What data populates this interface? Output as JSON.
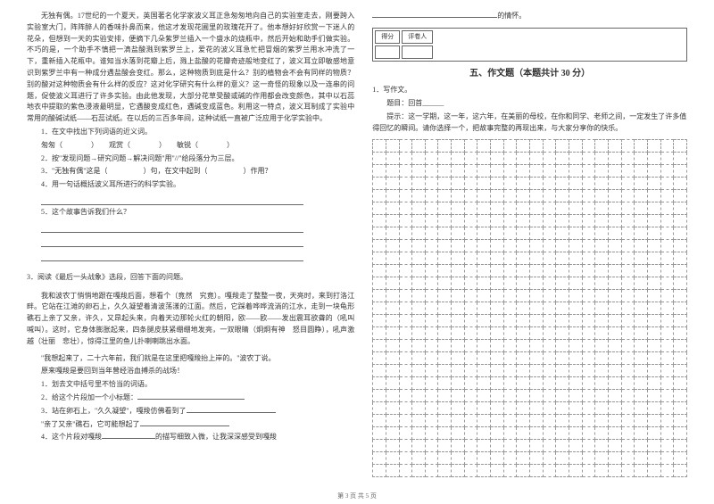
{
  "leftCol": {
    "passage1": {
      "p1": "无独有偶。17世纪的一个夏天，英国著名化学家波义耳正急匆匆地向自己的实验室走去，刚要跨入实验室大门，阵阵醉人的香味扑鼻而来，他这才发现花圃里的玫瑰花开了。他本想好好欣赏一下迷人的花朵，但想到一天的实验安排，便摘下几朵紫罗兰插入一个盛水的烧瓶中，然后开始和助手们做实验。不巧的是，一个助手不慎把一滴盐酸溅到紫罗兰上，爱花的波义耳急忙把冒烟的紫罗兰用水冲洗了一下，重新插入花瓶中。谁知当水落到花瓣上后，溅上盐酸的花瓣奇迹般地变红了，波义耳立即敏感地意识到紫罗兰中有一种成分遇盐酸会变红。那么，这种物质到底是什么？别的植物会不会有同样的物质？别的酸对这种物质会有什么样的反应？这对化学研究有什么样的意义？这一奇怪的现象以及一连串的问题，促使波义耳进行了许多实验。由此他发现，大部分花草受酸或碱的作用都会改变颜色，其中以石蕊地衣中提取的紫色浸液最明显，它遇酸变成红色，遇碱变成蓝色。利用这一特点，波义耳制成了实验中常用的酸碱试纸——石蕊试纸。在以后的三百多年间，这种试纸一直被广泛应用于化学实验中。",
      "q1_label": "1．在文中找出下列词语的近义词。",
      "q1_items": "匆匆（　　　　）　　观赏（　　　　）　　敏锐（　　　　）",
      "q2": "2．按\"发现问题→研究问题→解决问题\"用\"//\"给段落分为三层。",
      "q3_a": "3．\"无独有偶\"这是（　　　　　）句，在文中起到（　　　　　）作用？",
      "q4": "4．用一句话概括波义耳所进行的科学实验。",
      "q5": "5．这个故事告诉我们什么？"
    },
    "passage2": {
      "title": "3．阅读《最后一头战象》选段，回答下面的问题。",
      "p1": "我和波农丁悄悄地跟在嘎羧后面，想看个（竟然　究竟）。嘎羧走了整整一夜，天亮时，来到打洛江畔。它站在江滩的卵石上，久久凝望着清波荡漾的江面。然后，它踩着哗哗流淌的江水，走到一块龟形礁石上亲了又亲，许久，又昂起头来，向着天边那轮火红的朝阳，欧——欧——发出震耳欲聋的（吼叫　喊叫）。这时，它身体膨胀起来，四条腿皮肤紧绷绷地发亮，一双眼睛（炯炯有神　怒目圆睁），吼声激越（壮丽　悲壮），惊得江里的鱼儿扑喇喇跳出水面。",
      "p2": "\"我想起来了，二十六年前，我们就是在这里把嘎羧抬上岸的。\"波农丁说。",
      "p3": "原来嘎羧是要回到当年曾经浴血搏杀的战场！",
      "q1": "1．划去文中括号里不恰当的词语。",
      "q2": "2．给这个片段加一个小标题：",
      "q3_a": "3．站在卵石上，\"久久凝望\"，嘎羧仿佛看到了",
      "q3_b": "\"亲了又亲\"礁石，它可能想起了",
      "q4_a": "4．这个片段对嘎羧",
      "q4_b": "的描写细致入微，让我深深感受到嘎羧"
    }
  },
  "rightCol": {
    "topBlankSuffix": "的情怀。",
    "scoreLabels": {
      "c1": "得分",
      "c2": "评卷人"
    },
    "sectionTitle": "五、作文题（本题共计 30 分）",
    "essay": {
      "q1": "1．写作文。",
      "line1": "题目：回首______",
      "line2": "提示：这一学期，这一年，这六年，在美丽的母校，在你和同学、老师之间，一定发生了许多值得回忆的瞬间。请你选择一个，把故事完整的再现出来，与大家分享你的快乐。",
      "gridRows": 27,
      "gridCols": 24
    }
  },
  "footer": "第 3 页  共 5 页"
}
